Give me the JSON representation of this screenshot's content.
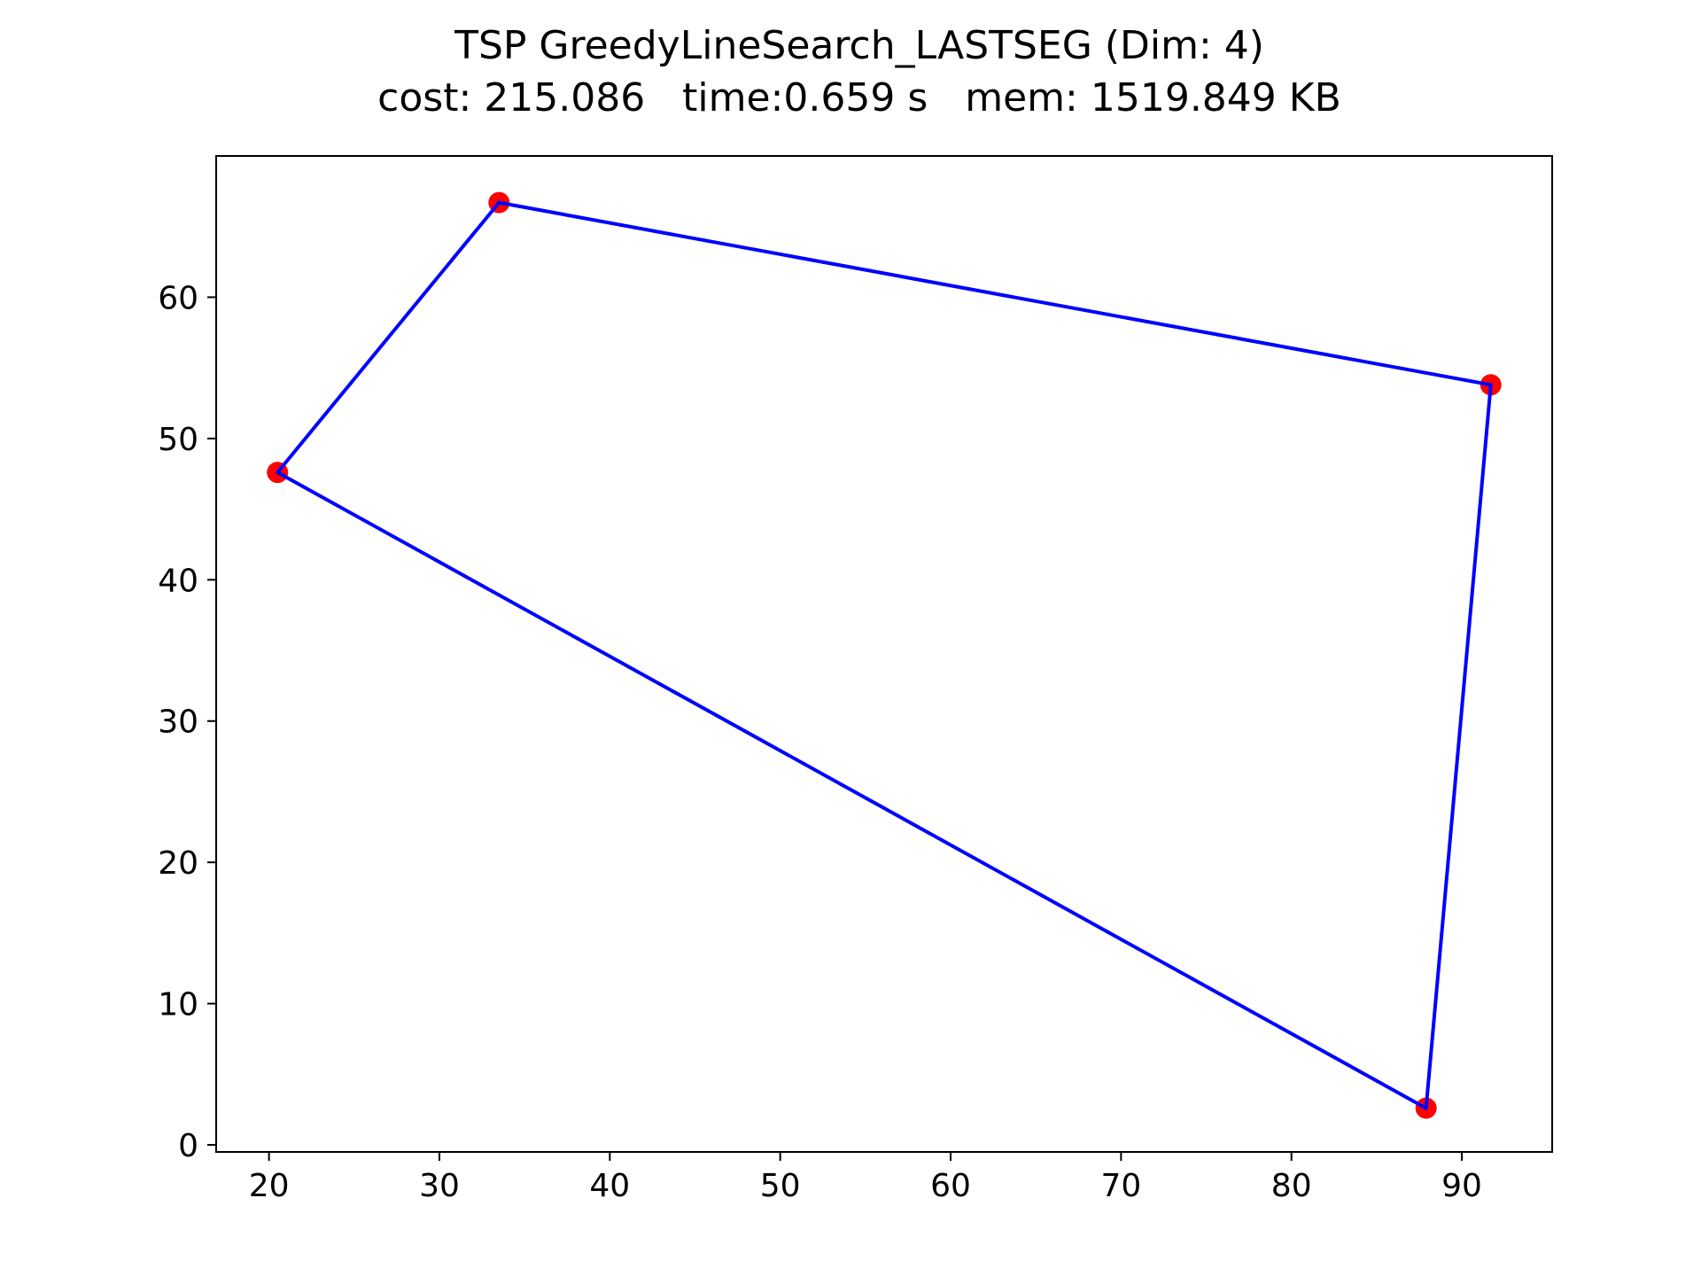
{
  "chart_data": {
    "type": "line",
    "title": "TSP GreedyLineSearch_LASTSEG (Dim: 4)",
    "subtitle": "cost: 215.086   time:0.659 s   mem: 1519.849 KB",
    "xlabel": "",
    "ylabel": "",
    "xlim": [
      16.9,
      95.3
    ],
    "ylim": [
      -0.5,
      70.0
    ],
    "xticks": [
      20,
      30,
      40,
      50,
      60,
      70,
      80,
      90
    ],
    "yticks": [
      0,
      10,
      20,
      30,
      40,
      50,
      60
    ],
    "grid": false,
    "legend": "none",
    "cities": [
      {
        "x": 20.5,
        "y": 47.6
      },
      {
        "x": 33.5,
        "y": 66.7
      },
      {
        "x": 91.7,
        "y": 53.8
      },
      {
        "x": 87.9,
        "y": 2.6
      }
    ],
    "tour": [
      {
        "x": 20.5,
        "y": 47.6
      },
      {
        "x": 33.5,
        "y": 66.7
      },
      {
        "x": 91.7,
        "y": 53.8
      },
      {
        "x": 87.9,
        "y": 2.6
      },
      {
        "x": 20.5,
        "y": 47.6
      }
    ],
    "colors": {
      "tour_line": "#0000ff",
      "city_marker": "#ff0000",
      "axes": "#000000"
    }
  }
}
